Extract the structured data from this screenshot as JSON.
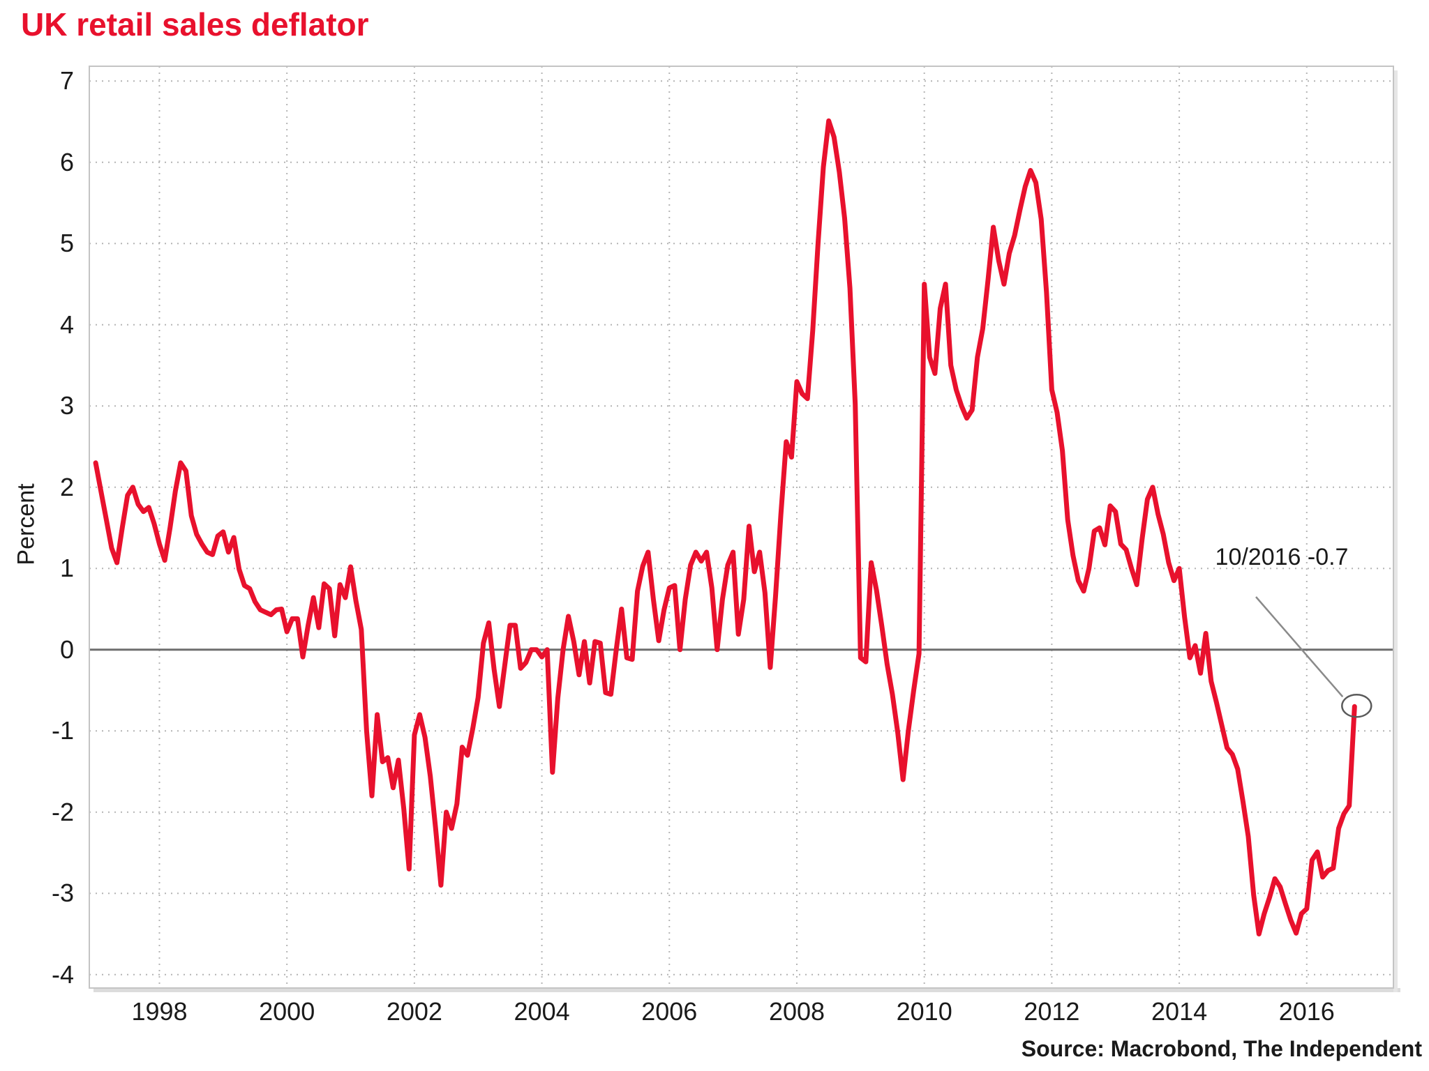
{
  "title": "UK retail sales deflator",
  "source": "Source: Macrobond, The Independent",
  "annotation": {
    "label": "10/2016 -0.7",
    "points_to": "2016-10",
    "value": -0.7
  },
  "y_axis": {
    "label": "Percent",
    "ticks": [
      7,
      6,
      5,
      4,
      3,
      2,
      1,
      0,
      -1,
      -2,
      -3,
      -4
    ]
  },
  "x_axis": {
    "ticks": [
      1998,
      2000,
      2002,
      2004,
      2006,
      2008,
      2010,
      2012,
      2014,
      2016
    ]
  },
  "colors": {
    "line": "#e8112d",
    "title": "#e8112d",
    "grid": "#b4b4b4",
    "zero_line": "#6e6e6e",
    "plot_border": "#c4c4c4",
    "annotation_line": "#8a8a8a",
    "annotation_circle": "#5a5a5a",
    "text": "#1a1a1a"
  },
  "chart_data": {
    "type": "line",
    "title": "UK retail sales deflator",
    "ylabel": "Percent",
    "ylim": [
      -4,
      7
    ],
    "grid": true,
    "legend_position": "none",
    "frequency": "monthly",
    "start": "1997-01",
    "end": "2016-10",
    "series": [
      {
        "name": "UK retail sales deflator (percent, year-over-year)",
        "values": [
          2.3,
          1.95,
          1.6,
          1.25,
          1.07,
          1.5,
          1.9,
          2.0,
          1.79,
          1.7,
          1.75,
          1.55,
          1.3,
          1.1,
          1.5,
          1.95,
          2.3,
          2.2,
          1.65,
          1.42,
          1.3,
          1.2,
          1.17,
          1.4,
          1.45,
          1.2,
          1.38,
          0.99,
          0.79,
          0.75,
          0.59,
          0.49,
          0.46,
          0.43,
          0.49,
          0.5,
          0.22,
          0.38,
          0.38,
          -0.09,
          0.3,
          0.64,
          0.27,
          0.81,
          0.75,
          0.17,
          0.8,
          0.64,
          1.02,
          0.6,
          0.25,
          -1.0,
          -1.8,
          -0.8,
          -1.38,
          -1.33,
          -1.7,
          -1.36,
          -1.96,
          -2.7,
          -1.05,
          -0.8,
          -1.08,
          -1.56,
          -2.2,
          -2.9,
          -2.0,
          -2.2,
          -1.9,
          -1.2,
          -1.3,
          -0.97,
          -0.59,
          0.08,
          0.33,
          -0.24,
          -0.7,
          -0.2,
          0.3,
          0.3,
          -0.23,
          -0.16,
          0.0,
          0.0,
          -0.09,
          0.0,
          -1.51,
          -0.6,
          0.0,
          0.41,
          0.1,
          -0.31,
          0.1,
          -0.41,
          0.1,
          0.08,
          -0.53,
          -0.55,
          0.0,
          0.5,
          -0.1,
          -0.12,
          0.72,
          1.03,
          1.2,
          0.62,
          0.11,
          0.49,
          0.76,
          0.79,
          0.0,
          0.62,
          1.04,
          1.2,
          1.09,
          1.2,
          0.76,
          0.0,
          0.62,
          1.04,
          1.2,
          0.19,
          0.62,
          1.52,
          0.96,
          1.2,
          0.7,
          -0.22,
          0.66,
          1.66,
          2.56,
          2.37,
          3.3,
          3.15,
          3.09,
          3.93,
          5.0,
          5.94,
          6.51,
          6.31,
          5.88,
          5.31,
          4.45,
          3.02,
          -0.1,
          -0.15,
          1.07,
          0.73,
          0.29,
          -0.18,
          -0.55,
          -1.02,
          -1.6,
          -1.0,
          -0.5,
          -0.05,
          4.5,
          3.6,
          3.4,
          4.2,
          4.5,
          3.5,
          3.2,
          3.0,
          2.85,
          2.95,
          3.6,
          3.95,
          4.55,
          5.2,
          4.79,
          4.5,
          4.88,
          5.1,
          5.41,
          5.7,
          5.9,
          5.75,
          5.3,
          4.4,
          3.2,
          2.92,
          2.45,
          1.6,
          1.16,
          0.85,
          0.72,
          1.0,
          1.46,
          1.5,
          1.29,
          1.77,
          1.7,
          1.3,
          1.23,
          1.0,
          0.8,
          1.36,
          1.85,
          2.0,
          1.67,
          1.42,
          1.07,
          0.85,
          1.0,
          0.4,
          -0.1,
          0.05,
          -0.29,
          0.2,
          -0.39,
          -0.65,
          -0.93,
          -1.21,
          -1.29,
          -1.47,
          -1.87,
          -2.3,
          -3.02,
          -3.5,
          -3.25,
          -3.05,
          -2.82,
          -2.92,
          -3.13,
          -3.33,
          -3.49,
          -3.25,
          -3.19,
          -2.59,
          -2.49,
          -2.8,
          -2.72,
          -2.69,
          -2.2,
          -2.02,
          -1.92,
          -0.7
        ]
      }
    ]
  }
}
